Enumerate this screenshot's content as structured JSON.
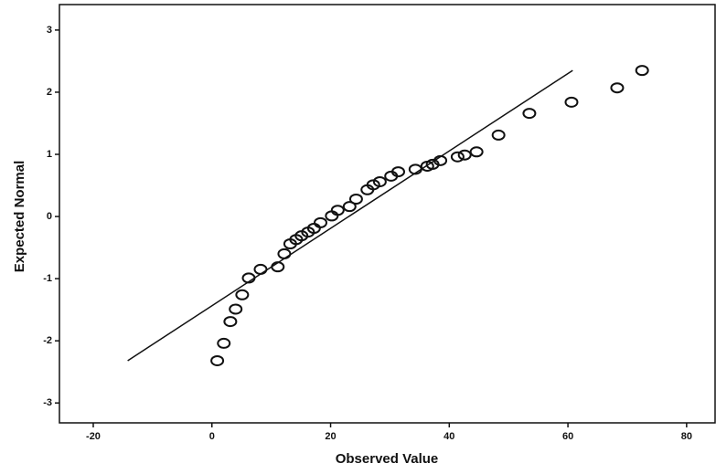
{
  "chart_data": {
    "type": "scatter",
    "x_label": "Observed Value",
    "y_label": "Expected Normal",
    "x": [
      0.9,
      2.0,
      3.1,
      4.0,
      5.1,
      6.2,
      8.2,
      11.1,
      12.2,
      13.2,
      14.2,
      15.1,
      16.2,
      17.2,
      18.3,
      20.2,
      21.2,
      23.2,
      24.3,
      26.2,
      27.2,
      28.3,
      30.2,
      31.4,
      34.3,
      36.3,
      37.2,
      38.5,
      41.4,
      42.6,
      44.6,
      48.3,
      53.5,
      60.6,
      68.3,
      72.5
    ],
    "y": [
      -2.32,
      -2.04,
      -1.69,
      -1.49,
      -1.26,
      -0.99,
      -0.85,
      -0.81,
      -0.6,
      -0.44,
      -0.37,
      -0.31,
      -0.25,
      -0.19,
      -0.1,
      0.01,
      0.1,
      0.16,
      0.28,
      0.43,
      0.51,
      0.56,
      0.65,
      0.72,
      0.76,
      0.81,
      0.84,
      0.9,
      0.96,
      0.99,
      1.04,
      1.31,
      1.66,
      1.84,
      2.07,
      2.35
    ],
    "color": "#111111",
    "reference_line": {
      "x": [
        -14.2,
        60.8
      ],
      "y": [
        -2.32,
        2.35
      ],
      "color": "#111111"
    },
    "xlim": [
      -25.7,
      84.8
    ],
    "ylim": [
      -3.32,
      3.41
    ],
    "xticks": [
      -20,
      0,
      20,
      40,
      60,
      80
    ],
    "yticks": [
      -3,
      -2,
      -1,
      0,
      1,
      2,
      3
    ],
    "grid": false
  }
}
